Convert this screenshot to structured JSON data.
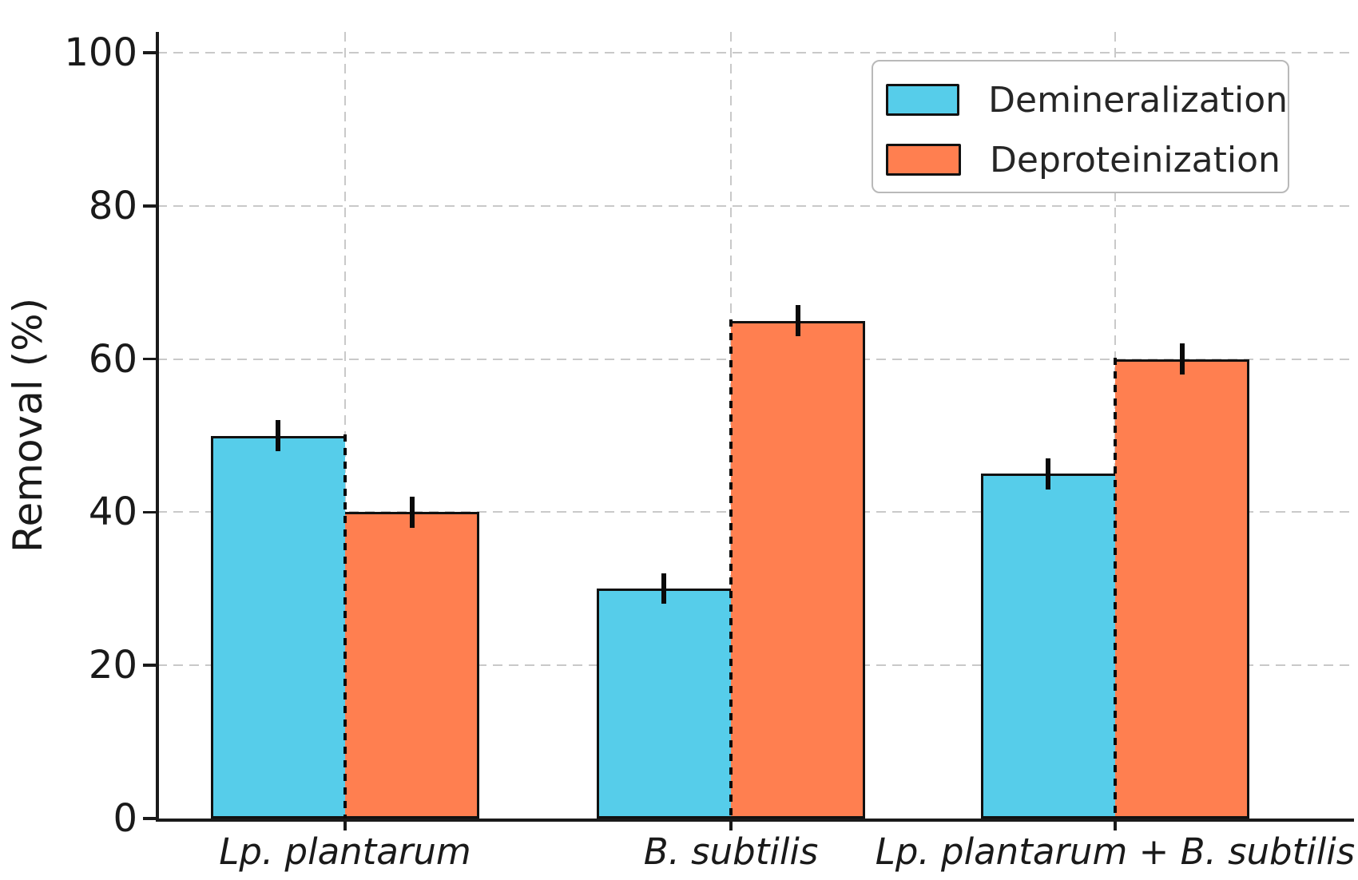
{
  "chart_data": {
    "type": "bar",
    "title": "",
    "xlabel": "",
    "ylabel": "Removal (%)",
    "categories": [
      "Lp. plantarum",
      "B. subtilis",
      "Lp. plantarum + B. subtilis"
    ],
    "series": [
      {
        "name": "Demineralization",
        "color": "#56CDEA",
        "values": [
          50,
          30,
          45
        ],
        "errors": [
          2,
          2,
          2
        ]
      },
      {
        "name": "Deproteinization",
        "color": "#FF7F50",
        "values": [
          40,
          65,
          60
        ],
        "errors": [
          2,
          2,
          2
        ]
      }
    ],
    "ylim": [
      0,
      100
    ],
    "yticks": [
      0,
      20,
      40,
      60,
      80,
      100
    ],
    "grid": "both, dashed",
    "gridline_color": "#c9c9c9",
    "bar_edge_color": "#111111",
    "error_bar_color": "#0a0a0a",
    "legend_position": "upper right",
    "x_tick_label_style": "italic"
  }
}
